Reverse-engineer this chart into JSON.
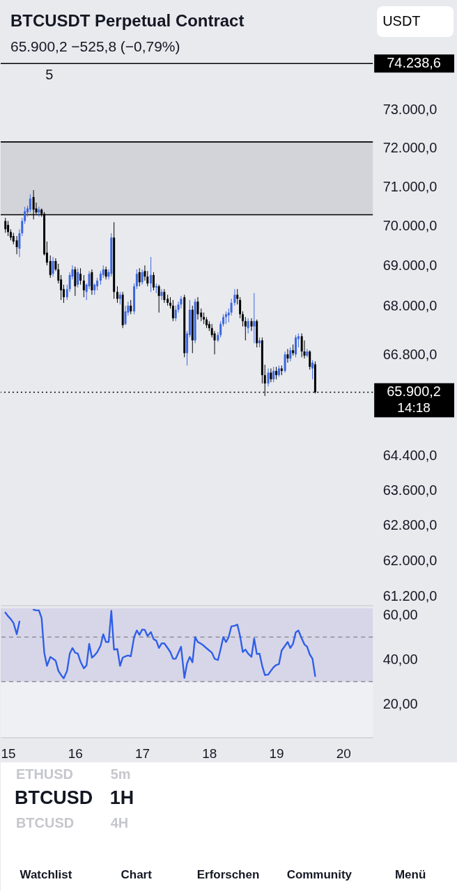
{
  "chart_data": [
    {
      "type": "candlestick",
      "title": "BTCUSDT Perpetual Contract",
      "subtitle": "65.900,2 −525,8 (−0,79%)",
      "x": [
        14.96,
        15,
        15.04,
        15.08,
        15.13,
        15.17,
        15.21,
        15.25,
        15.29,
        15.33,
        15.38,
        15.42,
        15.46,
        15.5,
        15.54,
        15.58,
        15.63,
        15.67,
        15.71,
        15.75,
        15.79,
        15.83,
        15.88,
        15.92,
        15.96,
        16,
        16.04,
        16.08,
        16.13,
        16.17,
        16.21,
        16.25,
        16.29,
        16.33,
        16.38,
        16.42,
        16.46,
        16.5,
        16.54,
        16.58,
        16.63,
        16.67,
        16.71,
        16.75,
        16.79,
        16.83,
        16.88,
        16.92,
        16.96,
        17,
        17.04,
        17.08,
        17.13,
        17.17,
        17.21,
        17.25,
        17.29,
        17.33,
        17.38,
        17.42,
        17.46,
        17.5,
        17.54,
        17.58,
        17.63,
        17.67,
        17.71,
        17.75,
        17.79,
        17.83,
        17.88,
        17.92,
        17.96,
        18,
        18.04,
        18.08,
        18.13,
        18.17,
        18.21,
        18.25,
        18.29,
        18.33,
        18.38,
        18.42,
        18.46,
        18.5,
        18.54,
        18.58,
        18.63,
        18.67,
        18.71,
        18.75,
        18.79,
        18.83,
        18.88,
        18.92,
        18.96,
        19,
        19.04,
        19.08,
        19.13,
        19.17,
        19.21,
        19.25,
        19.29,
        19.33,
        19.38,
        19.42,
        19.46,
        19.5,
        19.54,
        19.58
      ],
      "ohlc": [
        [
          70120,
          70200,
          69820,
          69910
        ],
        [
          70020,
          70120,
          69740,
          69840
        ],
        [
          69840,
          69910,
          69630,
          69700
        ],
        [
          69740,
          69820,
          69530,
          69600
        ],
        [
          69630,
          69740,
          69280,
          69460
        ],
        [
          69420,
          69910,
          69210,
          69810
        ],
        [
          69810,
          70200,
          69740,
          70120
        ],
        [
          70120,
          70480,
          70050,
          70370
        ],
        [
          70340,
          70510,
          70230,
          70440
        ],
        [
          70410,
          70800,
          70340,
          70690
        ],
        [
          70730,
          70910,
          70160,
          70410
        ],
        [
          70440,
          70590,
          70300,
          70340
        ],
        [
          70340,
          70480,
          70230,
          70410
        ],
        [
          70410,
          70440,
          70230,
          70300
        ],
        [
          70300,
          70350,
          69250,
          69280
        ],
        [
          69320,
          69600,
          69000,
          69070
        ],
        [
          69110,
          69250,
          68690,
          68760
        ],
        [
          68790,
          69210,
          68720,
          69110
        ],
        [
          69110,
          69180,
          68860,
          68900
        ],
        [
          68900,
          69040,
          68550,
          68620
        ],
        [
          68650,
          68760,
          68140,
          68380
        ],
        [
          68410,
          68520,
          68070,
          68210
        ],
        [
          68210,
          68520,
          68140,
          68410
        ],
        [
          68410,
          68830,
          68340,
          68760
        ],
        [
          68720,
          69000,
          68650,
          68900
        ],
        [
          68900,
          68970,
          68240,
          68480
        ],
        [
          68520,
          68930,
          68450,
          68830
        ],
        [
          68790,
          68930,
          68520,
          68620
        ],
        [
          68620,
          68760,
          68210,
          68380
        ],
        [
          68340,
          68550,
          68140,
          68520
        ],
        [
          68480,
          68860,
          68410,
          68790
        ],
        [
          68830,
          68900,
          68270,
          68380
        ],
        [
          68380,
          68550,
          68270,
          68520
        ],
        [
          68480,
          68690,
          68380,
          68620
        ],
        [
          68620,
          68860,
          68520,
          68790
        ],
        [
          68760,
          69000,
          68690,
          68900
        ],
        [
          68900,
          68970,
          68650,
          68720
        ],
        [
          68720,
          68900,
          68650,
          68830
        ],
        [
          68790,
          69810,
          68720,
          69700
        ],
        [
          69700,
          70090,
          68170,
          68340
        ],
        [
          68340,
          68480,
          68070,
          68170
        ],
        [
          68170,
          68340,
          68030,
          68270
        ],
        [
          68270,
          68340,
          67450,
          67520
        ],
        [
          67550,
          68000,
          67520,
          67860
        ],
        [
          67830,
          68100,
          67760,
          68000
        ],
        [
          68000,
          68140,
          67790,
          67860
        ],
        [
          67860,
          68550,
          67790,
          68480
        ],
        [
          68480,
          68900,
          68410,
          68790
        ],
        [
          68830,
          68930,
          68480,
          68580
        ],
        [
          68580,
          68900,
          68520,
          68830
        ],
        [
          68860,
          69000,
          68620,
          68720
        ],
        [
          68720,
          68860,
          68480,
          68550
        ],
        [
          68550,
          69210,
          68340,
          68760
        ],
        [
          68760,
          68830,
          68380,
          68450
        ],
        [
          68450,
          68550,
          68310,
          68480
        ],
        [
          68480,
          68520,
          67830,
          68240
        ],
        [
          68240,
          68410,
          68140,
          68340
        ],
        [
          68340,
          68410,
          68070,
          68140
        ],
        [
          68170,
          68270,
          68000,
          68070
        ],
        [
          68070,
          68210,
          67930,
          68000
        ],
        [
          68000,
          68140,
          67620,
          67690
        ],
        [
          67690,
          68000,
          67620,
          67900
        ],
        [
          67900,
          68100,
          67830,
          68030
        ],
        [
          68030,
          68240,
          67930,
          68170
        ],
        [
          68210,
          68270,
          66740,
          66840
        ],
        [
          66840,
          67380,
          66540,
          67320
        ],
        [
          67280,
          68140,
          67220,
          67900
        ],
        [
          67900,
          68000,
          66840,
          67150
        ],
        [
          67150,
          68170,
          67080,
          68100
        ],
        [
          68100,
          68210,
          67660,
          67790
        ],
        [
          67830,
          67930,
          67620,
          67720
        ],
        [
          67720,
          67830,
          67550,
          67660
        ],
        [
          67660,
          67720,
          67450,
          67520
        ],
        [
          67550,
          67620,
          67380,
          67450
        ],
        [
          67450,
          67550,
          67220,
          67280
        ],
        [
          67320,
          67380,
          66810,
          67150
        ],
        [
          67150,
          67350,
          67110,
          67280
        ],
        [
          67280,
          67620,
          67220,
          67550
        ],
        [
          67550,
          67790,
          67490,
          67720
        ],
        [
          67720,
          67860,
          67550,
          67790
        ],
        [
          67760,
          67930,
          67590,
          67830
        ],
        [
          67830,
          68170,
          67760,
          68070
        ],
        [
          68070,
          68410,
          68000,
          68270
        ],
        [
          68270,
          68410,
          68030,
          68170
        ],
        [
          68140,
          68210,
          67690,
          67790
        ],
        [
          67790,
          67860,
          67490,
          67620
        ],
        [
          67620,
          67720,
          67150,
          67490
        ],
        [
          67450,
          67690,
          67320,
          67620
        ],
        [
          67620,
          67690,
          67380,
          67490
        ],
        [
          67490,
          68310,
          67080,
          67620
        ],
        [
          67620,
          67660,
          66980,
          67080
        ],
        [
          67080,
          67220,
          66980,
          67150
        ],
        [
          67150,
          67220,
          66110,
          66310
        ],
        [
          66310,
          66560,
          65810,
          66110
        ],
        [
          66110,
          66470,
          66040,
          66370
        ],
        [
          66370,
          66470,
          66140,
          66210
        ],
        [
          66210,
          66510,
          66140,
          66410
        ],
        [
          66410,
          66510,
          66210,
          66310
        ],
        [
          66310,
          66540,
          66270,
          66470
        ],
        [
          66470,
          66540,
          66310,
          66410
        ],
        [
          66410,
          66880,
          66370,
          66810
        ],
        [
          66810,
          66940,
          66610,
          66710
        ],
        [
          66710,
          66980,
          66640,
          66910
        ],
        [
          66910,
          67050,
          66780,
          66840
        ],
        [
          66810,
          67280,
          66740,
          67220
        ],
        [
          67180,
          67320,
          66980,
          67250
        ],
        [
          67250,
          67320,
          66740,
          66880
        ],
        [
          66880,
          67150,
          66710,
          66780
        ],
        [
          66780,
          66940,
          66740,
          66880
        ],
        [
          66880,
          66910,
          66440,
          66510
        ],
        [
          66470,
          66670,
          66210,
          66610
        ],
        [
          66570,
          66640,
          65870,
          65900.2
        ]
      ],
      "colors": [
        "#000000",
        "#000000",
        "#000000",
        "#000000",
        "#000000",
        "#3b66e0",
        "#3b66e0",
        "#3b66e0",
        "#3b66e0",
        "#3b66e0",
        "#000000",
        "#000000",
        "#3b66e0",
        "#000000",
        "#000000",
        "#000000",
        "#000000",
        "#3b66e0",
        "#000000",
        "#000000",
        "#000000",
        "#000000",
        "#3b66e0",
        "#3b66e0",
        "#3b66e0",
        "#000000",
        "#3b66e0",
        "#000000",
        "#000000",
        "#3b66e0",
        "#3b66e0",
        "#000000",
        "#3b66e0",
        "#3b66e0",
        "#3b66e0",
        "#3b66e0",
        "#000000",
        "#3b66e0",
        "#3b66e0",
        "#000000",
        "#000000",
        "#3b66e0",
        "#000000",
        "#3b66e0",
        "#3b66e0",
        "#000000",
        "#3b66e0",
        "#3b66e0",
        "#000000",
        "#3b66e0",
        "#000000",
        "#000000",
        "#3b66e0",
        "#000000",
        "#3b66e0",
        "#000000",
        "#3b66e0",
        "#000000",
        "#000000",
        "#000000",
        "#000000",
        "#3b66e0",
        "#3b66e0",
        "#3b66e0",
        "#000000",
        "#3b66e0",
        "#3b66e0",
        "#000000",
        "#3b66e0",
        "#000000",
        "#000000",
        "#000000",
        "#000000",
        "#000000",
        "#000000",
        "#000000",
        "#3b66e0",
        "#3b66e0",
        "#3b66e0",
        "#3b66e0",
        "#3b66e0",
        "#3b66e0",
        "#3b66e0",
        "#000000",
        "#000000",
        "#000000",
        "#000000",
        "#3b66e0",
        "#000000",
        "#3b66e0",
        "#000000",
        "#3b66e0",
        "#000000",
        "#000000",
        "#3b66e0",
        "#000000",
        "#3b66e0",
        "#000000",
        "#3b66e0",
        "#000000",
        "#3b66e0",
        "#000000",
        "#3b66e0",
        "#000000",
        "#3b66e0",
        "#3b66e0",
        "#000000",
        "#000000",
        "#3b66e0",
        "#000000",
        "#3b66e0",
        "#000000"
      ],
      "xlim": [
        14.89,
        20.44
      ],
      "xticks": [
        15,
        16,
        17,
        18,
        19,
        20
      ],
      "ylim": [
        61000,
        75950
      ],
      "yticks": [
        {
          "value": 73000,
          "label": "73.000,0"
        },
        {
          "value": 72000,
          "label": "72.000,0"
        },
        {
          "value": 71000,
          "label": "71.000,0"
        },
        {
          "value": 70000,
          "label": "70.000,0"
        },
        {
          "value": 69000,
          "label": "69.000,0"
        },
        {
          "value": 68000,
          "label": "68.000,0"
        },
        {
          "value": 66800,
          "label": "66.800,0"
        },
        {
          "value": 64400,
          "label": "64.400,0"
        },
        {
          "value": 63600,
          "label": "63.600,0"
        },
        {
          "value": 62800,
          "label": "62.800,0"
        },
        {
          "value": 62000,
          "label": "62.000,0"
        },
        {
          "value": 61200,
          "label": "61.200,0"
        }
      ],
      "log": true,
      "grid": false,
      "tick_labels": "y",
      "bands": [
        {
          "axis": "y",
          "from": 70280,
          "to": 72160,
          "color": "#d3d4d9"
        }
      ],
      "ref_lines": [
        {
          "axis": "y",
          "value": 74238.6,
          "label": "74.238,6",
          "color": "#000000",
          "line_style": "solid"
        },
        {
          "axis": "y",
          "value": 72160,
          "color": "#000000",
          "line_style": "solid"
        },
        {
          "axis": "y",
          "value": 70280,
          "color": "#000000",
          "line_style": "solid"
        },
        {
          "axis": "y",
          "value": 65900.2,
          "label": "65.900,2",
          "color": "#000000",
          "line_style": "dotted"
        }
      ],
      "annotations": [
        "5",
        "USDT",
        "14:18"
      ]
    },
    {
      "type": "line",
      "x": [
        14.96,
        15,
        15.04,
        15.08,
        15.13,
        15.17,
        15.21,
        15.25,
        15.29,
        15.33,
        15.38,
        15.42,
        15.46,
        15.5,
        15.54,
        15.58,
        15.63,
        15.67,
        15.71,
        15.75,
        15.79,
        15.83,
        15.88,
        15.92,
        15.96,
        16,
        16.04,
        16.08,
        16.13,
        16.17,
        16.21,
        16.25,
        16.29,
        16.33,
        16.38,
        16.42,
        16.46,
        16.5,
        16.54,
        16.58,
        16.63,
        16.67,
        16.71,
        16.75,
        16.79,
        16.83,
        16.88,
        16.92,
        16.96,
        17,
        17.04,
        17.08,
        17.13,
        17.17,
        17.21,
        17.25,
        17.29,
        17.33,
        17.38,
        17.42,
        17.46,
        17.5,
        17.54,
        17.58,
        17.63,
        17.67,
        17.71,
        17.75,
        17.79,
        17.83,
        17.88,
        17.92,
        17.96,
        18,
        18.04,
        18.08,
        18.13,
        18.17,
        18.21,
        18.25,
        18.29,
        18.33,
        18.38,
        18.42,
        18.46,
        18.5,
        18.54,
        18.58,
        18.63,
        18.67,
        18.71,
        18.75,
        18.79,
        18.83,
        18.88,
        18.92,
        18.96,
        19,
        19.04,
        19.08,
        19.13,
        19.17,
        19.21,
        19.25,
        19.29,
        19.33,
        19.38,
        19.42,
        19.46,
        19.5,
        19.54,
        19.58
      ],
      "series": [
        {
          "color": "#2f5fe8",
          "values": [
            61.0,
            59.4,
            58.1,
            56.4,
            51.3,
            57.0,
            null,
            null,
            null,
            null,
            62.3,
            62.0,
            62.0,
            58.6,
            43.0,
            37.1,
            41.1,
            40.3,
            39.4,
            34.9,
            33.0,
            31.5,
            34.9,
            42.6,
            45.1,
            43.0,
            42.6,
            39.0,
            36.0,
            37.3,
            47.0,
            40.8,
            41.8,
            43.3,
            46.2,
            51.3,
            47.8,
            47.8,
            61.8,
            44.4,
            44.6,
            37.1,
            40.8,
            41.4,
            41.8,
            41.4,
            50.0,
            53.0,
            51.0,
            53.4,
            53.2,
            50.5,
            52.3,
            49.1,
            48.4,
            45.1,
            47.2,
            47.2,
            45.1,
            43.3,
            40.3,
            40.3,
            43.0,
            45.7,
            31.7,
            38.3,
            41.1,
            38.7,
            50.0,
            47.8,
            47.0,
            46.1,
            45.0,
            44.0,
            43.0,
            40.3,
            39.7,
            44.6,
            50.0,
            47.8,
            50.0,
            54.8,
            55.1,
            55.6,
            50.5,
            43.3,
            44.4,
            42.6,
            41.1,
            49.4,
            42.4,
            42.6,
            37.1,
            33.0,
            33.2,
            34.9,
            36.5,
            37.5,
            37.9,
            44.0,
            46.1,
            47.8,
            45.1,
            47.0,
            52.1,
            53.0,
            49.4,
            46.7,
            45.7,
            42.2,
            40.3,
            32.5
          ]
        }
      ],
      "xlim": [
        14.89,
        20.44
      ],
      "xticks": [
        15,
        16,
        17,
        18,
        19,
        20
      ],
      "ylim": [
        5,
        63
      ],
      "yticks": [
        {
          "value": 60,
          "label": "60,00"
        },
        {
          "value": 40,
          "label": "40,00"
        },
        {
          "value": 20,
          "label": "20,00"
        }
      ],
      "grid": false,
      "bands": [
        {
          "axis": "y",
          "from": 30,
          "to": 63,
          "color": "#d7d6e8"
        }
      ],
      "ref_lines": [
        {
          "axis": "y",
          "value": 50,
          "color": "#8f8f9a",
          "line_style": "dashed"
        },
        {
          "axis": "y",
          "value": 30,
          "color": "#8f8f9a",
          "line_style": "dashed"
        }
      ]
    },
    {
      "type": "other",
      "annotations": [
        "ETHUSD",
        "5m",
        "BTCUSD",
        "1H",
        "BTCUSD",
        "4H",
        "Watchlist",
        "Chart",
        "Erforschen",
        "Community",
        "Menü"
      ]
    }
  ]
}
